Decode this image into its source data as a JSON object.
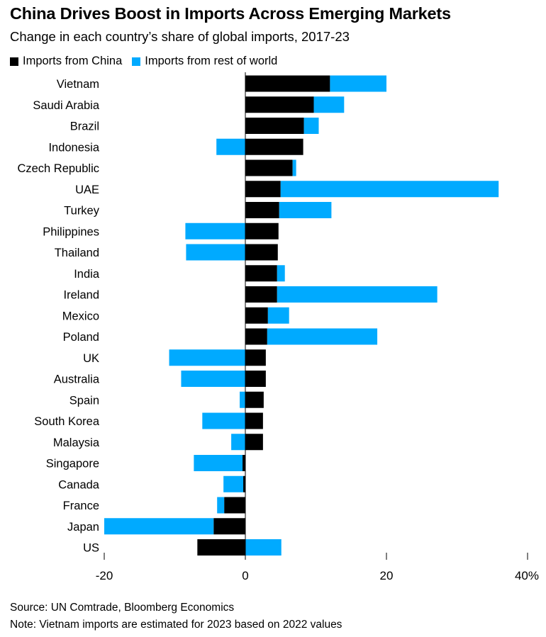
{
  "title": "China Drives Boost in Imports Across Emerging Markets",
  "subtitle": "Change in each country’s share of global imports, 2017-23",
  "legend": {
    "china": {
      "label": "Imports from China",
      "color": "#000000"
    },
    "rest": {
      "label": "Imports from rest of world",
      "color": "#00aaff"
    }
  },
  "source": "Source: UN Comtrade, Bloomberg Economics",
  "note": "Note: Vietnam imports are estimated for 2023 based on 2022 values",
  "chart_data": {
    "type": "bar",
    "orientation": "horizontal",
    "stacked": "diverging",
    "title": "China Drives Boost in Imports Across Emerging Markets",
    "subtitle": "Change in each country’s share of global imports, 2017-23",
    "xlabel": "",
    "ylabel": "",
    "unit": "%",
    "xlim": [
      -20,
      40
    ],
    "xticks": [
      -20,
      0,
      20,
      40
    ],
    "xtick_labels": [
      "-20",
      "0",
      "20",
      "40%"
    ],
    "categories": [
      "Vietnam",
      "Saudi Arabia",
      "Brazil",
      "Indonesia",
      "Czech Republic",
      "UAE",
      "Turkey",
      "Philippines",
      "Thailand",
      "India",
      "Ireland",
      "Mexico",
      "Poland",
      "UK",
      "Australia",
      "Spain",
      "South Korea",
      "Malaysia",
      "Singapore",
      "Canada",
      "France",
      "Japan",
      "US"
    ],
    "series": [
      {
        "name": "Imports from China",
        "color": "#000000",
        "values": [
          12.0,
          9.7,
          8.3,
          8.2,
          6.7,
          5.0,
          4.8,
          4.7,
          4.6,
          4.5,
          4.5,
          3.2,
          3.1,
          2.9,
          2.9,
          2.6,
          2.5,
          2.5,
          -0.4,
          -0.3,
          -3.0,
          -4.5,
          -6.8
        ]
      },
      {
        "name": "Imports from rest of world",
        "color": "#00aaff",
        "values": [
          8.0,
          4.3,
          2.1,
          -4.1,
          0.5,
          30.9,
          7.4,
          -8.5,
          -8.4,
          1.1,
          22.7,
          3.0,
          15.6,
          -10.8,
          -9.1,
          -0.8,
          -6.1,
          -2.0,
          -6.9,
          -2.8,
          -1.0,
          -15.5,
          5.1
        ]
      }
    ],
    "grid": false,
    "legend_position": "top-left"
  }
}
